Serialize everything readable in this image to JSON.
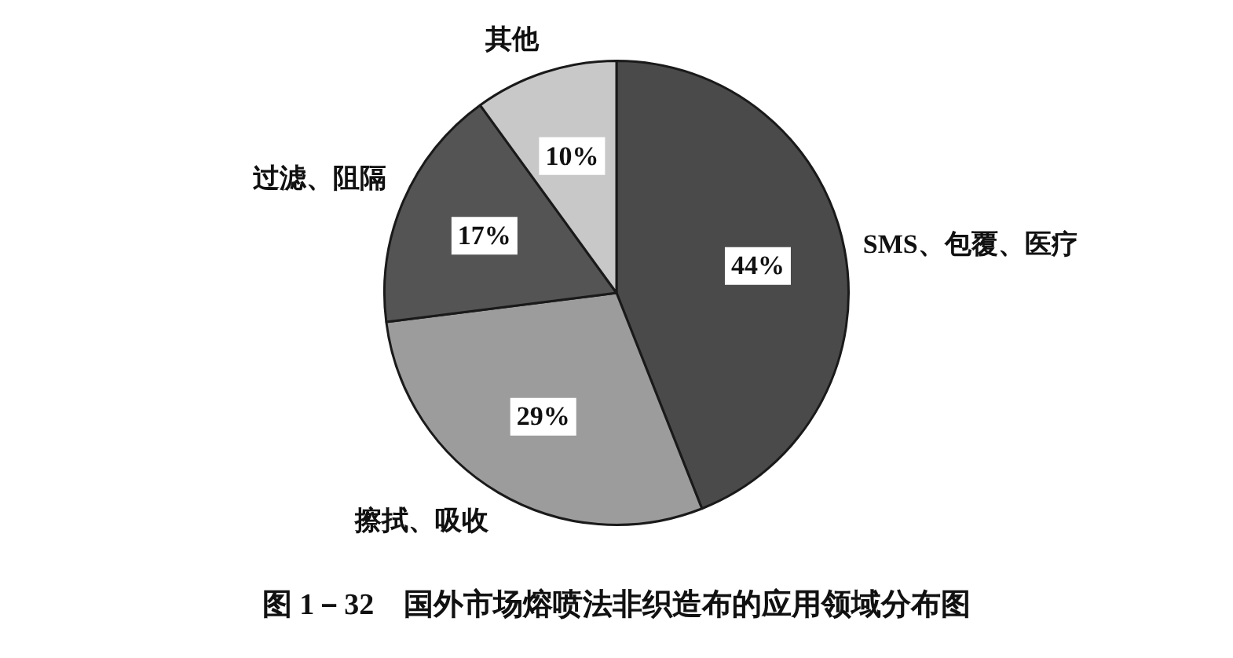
{
  "chart_data": {
    "type": "pie",
    "title": "图 1－32　国外市场熔喷法非织造布的应用领域分布图",
    "categories": [
      "SMS、包覆、医疗",
      "擦拭、吸收",
      "过滤、阻隔",
      "其他"
    ],
    "values": [
      44,
      29,
      17,
      10
    ],
    "colors": [
      "#4a4a4a",
      "#9c9c9c",
      "#545454",
      "#c8c8c8"
    ],
    "value_labels": [
      "44%",
      "29%",
      "17%",
      "10%"
    ]
  }
}
